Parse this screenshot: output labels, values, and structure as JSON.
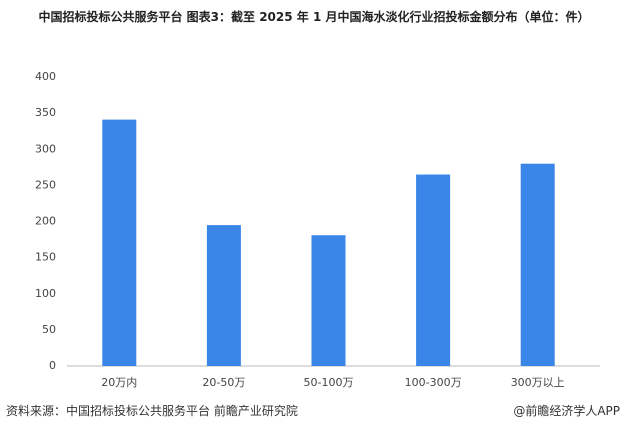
{
  "chart_data": {
    "type": "bar",
    "title": "中国招标投标公共服务平台  图表3：截至 2025 年 1 月中国海水淡化行业招投标金额分布（单位：件）",
    "categories": [
      "20万内",
      "20-50万",
      "50-100万",
      "100-300万",
      "300万以上"
    ],
    "values": [
      341,
      195,
      181,
      265,
      280
    ],
    "color": "#3a86e8",
    "ylim": [
      0,
      400
    ],
    "yticks": [
      0,
      50,
      100,
      150,
      200,
      250,
      300,
      350,
      400
    ],
    "grid": false,
    "source": "资料来源：中国招标投标公共服务平台 前瞻产业研究院",
    "credit": "@前瞻经济学人APP"
  }
}
